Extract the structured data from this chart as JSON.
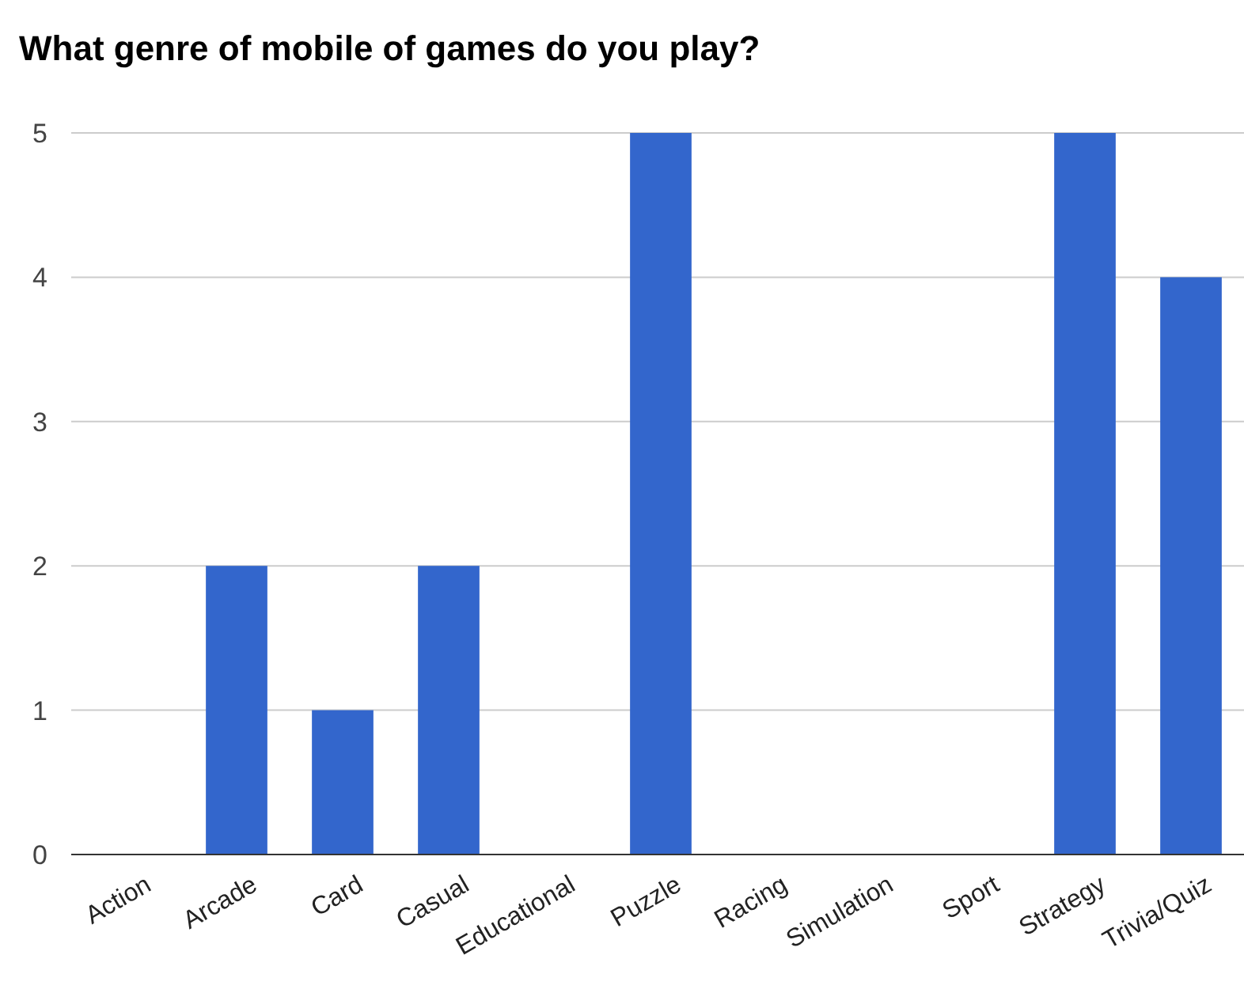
{
  "chart_data": {
    "type": "bar",
    "title": "What genre of mobile of games do you play?",
    "categories": [
      "Action",
      "Arcade",
      "Card",
      "Casual",
      "Educational",
      "Puzzle",
      "Racing",
      "Simulation",
      "Sport",
      "Strategy",
      "Trivia/Quiz"
    ],
    "values": [
      0,
      2,
      1,
      2,
      0,
      5,
      0,
      0,
      0,
      5,
      4
    ],
    "color": "#3366cc",
    "ylim": [
      0,
      5
    ],
    "yticks": [
      0,
      1,
      2,
      3,
      4,
      5
    ],
    "grid": "y"
  }
}
